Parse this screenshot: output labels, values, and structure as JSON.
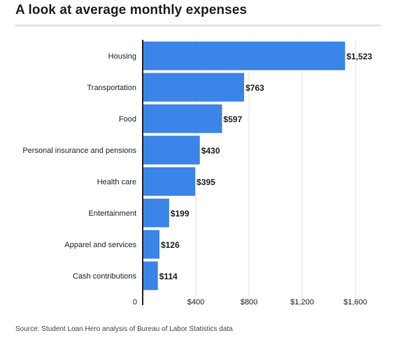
{
  "title": "A look at average monthly expenses",
  "source": "Source: Student Loan Hero analysis of Bureau of Labor Statistics data",
  "colors": {
    "bar": "#3b84e8",
    "grid": "#e2e2e2",
    "axis": "#222222",
    "text": "#222222"
  },
  "chart_data": {
    "type": "bar",
    "orientation": "horizontal",
    "title": "A look at average monthly expenses",
    "categories": [
      "Housing",
      "Transportation",
      "Food",
      "Personal insurance and pensions",
      "Health care",
      "Entertainment",
      "Apparel and services",
      "Cash contributions"
    ],
    "values": [
      1523,
      763,
      597,
      430,
      395,
      199,
      126,
      114
    ],
    "value_labels": [
      "$1,523",
      "$763",
      "$597",
      "$430",
      "$395",
      "$199",
      "$126",
      "$114"
    ],
    "xlim": [
      0,
      1600
    ],
    "xticks": [
      0,
      400,
      800,
      1200,
      1600
    ],
    "xtick_labels": [
      "0",
      "$400",
      "$800",
      "$1,200",
      "$1,600"
    ],
    "grid": true
  }
}
